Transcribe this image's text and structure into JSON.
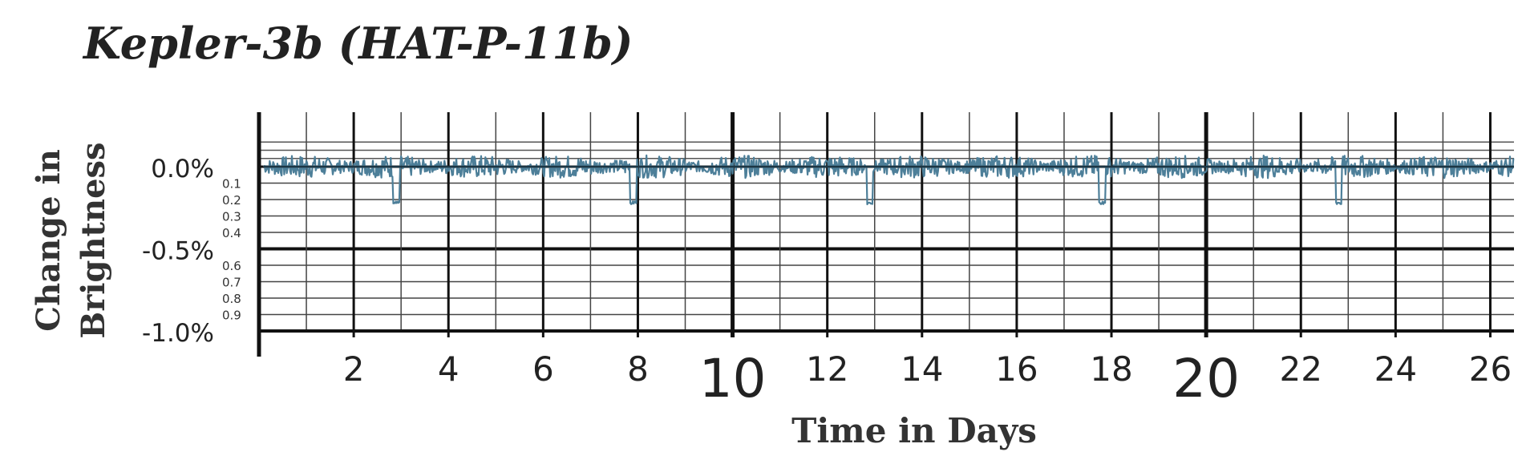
{
  "chart_data": {
    "type": "line",
    "title": "Kepler-3b (HAT-P-11b)",
    "xlabel": "Time in Days",
    "ylabel_lines": [
      "Change in",
      "Brightness"
    ],
    "xlim": [
      0,
      26.5
    ],
    "ylim": [
      -1.0,
      0.2
    ],
    "x_ticks": [
      2,
      4,
      6,
      8,
      10,
      12,
      14,
      16,
      18,
      20,
      22,
      24,
      26
    ],
    "x_tick_emphasis": [
      10,
      20
    ],
    "y_ticks_major": [
      {
        "value": 0.0,
        "label": "0.0%"
      },
      {
        "value": -0.5,
        "label": "-0.5%"
      },
      {
        "value": -1.0,
        "label": "-1.0%"
      }
    ],
    "y_ticks_minor": [
      {
        "value": -0.1,
        "label": "0.1"
      },
      {
        "value": -0.2,
        "label": "0.2"
      },
      {
        "value": -0.3,
        "label": "0.3"
      },
      {
        "value": -0.4,
        "label": "0.4"
      },
      {
        "value": -0.6,
        "label": "0.6"
      },
      {
        "value": -0.7,
        "label": "0.7"
      },
      {
        "value": -0.8,
        "label": "0.8"
      },
      {
        "value": -0.9,
        "label": "0.9"
      }
    ],
    "grid": true,
    "series": [
      {
        "baseline": 0.0,
        "noise_amplitude": 0.07,
        "transits": [
          {
            "x": 2.9,
            "depth": -0.22
          },
          {
            "x": 7.9,
            "depth": -0.22
          },
          {
            "x": 12.9,
            "depth": -0.22
          },
          {
            "x": 17.8,
            "depth": -0.22
          },
          {
            "x": 22.8,
            "depth": -0.22
          }
        ],
        "color": "#4d7f99"
      }
    ]
  }
}
